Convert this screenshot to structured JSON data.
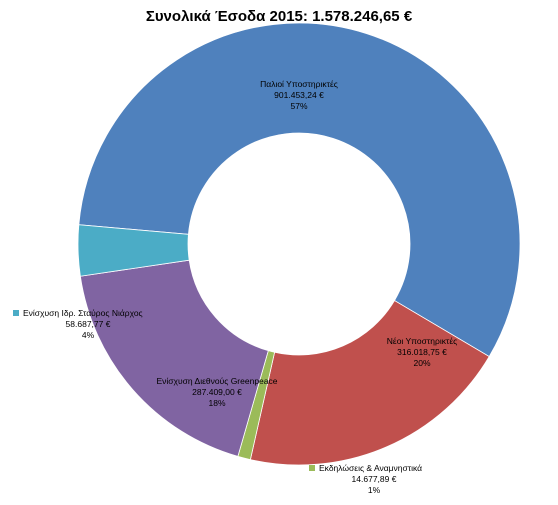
{
  "chart_data": {
    "type": "pie",
    "title": "Συνολικά Έσοδα 2015:  1.578.246,65 €",
    "legend": "none",
    "slices": [
      {
        "name": "Παλιοί Υποστηρικτές",
        "value": 901453.24,
        "value_label": "901.453,24 €",
        "percent_label": "57%",
        "color": "#4f81bd"
      },
      {
        "name": "Νέοι Υποστηρικτές",
        "value": 316018.75,
        "value_label": "316.018,75 €",
        "percent_label": "20%",
        "color": "#c0504d"
      },
      {
        "name": "Εκδηλώσεις & Αναμνηστικά",
        "value": 14677.89,
        "value_label": "14.677,89 €",
        "percent_label": "1%",
        "color": "#9bbb59"
      },
      {
        "name": "Ενίσχυση Διεθνούς Greenpeace",
        "value": 287409.0,
        "value_label": "287.409,00 €",
        "percent_label": "18%",
        "color": "#8064a2"
      },
      {
        "name": "Ενίσχυση Ιδρ. Σταύρος Νιάρχος",
        "value": 58687.77,
        "value_label": "58.687,77 €",
        "percent_label": "4%",
        "color": "#4bacc6"
      }
    ]
  }
}
